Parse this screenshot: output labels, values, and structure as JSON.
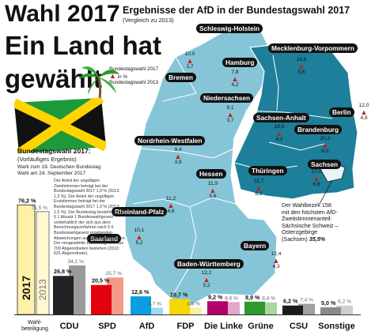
{
  "header": {
    "title_line1": "Wahl 2017",
    "title_line2": "Ein Land hat",
    "title_line3": "gewählt",
    "map_title": "Ergebnisse der AfD in der Bundestagswahl 2017",
    "map_subtitle": "(Vergleich zu 2013)"
  },
  "legend": {
    "label_2017": "Bundestagswahl 2017",
    "label_change": "in %",
    "label_2013": "Bundestagswahl 2013"
  },
  "states": [
    {
      "name": "Schleswig-Holstein",
      "v2017": "",
      "v2013": ""
    },
    {
      "name": "Mecklenburg-Vorpommern",
      "v2017": "18,6",
      "v2013": "5,6"
    },
    {
      "name": "Hamburg",
      "v2017": "7,8",
      "v2013": "4,2"
    },
    {
      "name": "Bremen",
      "v2017": "10,0",
      "v2013": "3,7"
    },
    {
      "name": "Niedersachsen",
      "v2017": "9,1",
      "v2013": "3,7"
    },
    {
      "name": "Berlin",
      "v2017": "12,0",
      "v2013": "4,9"
    },
    {
      "name": "Sachsen-Anhalt",
      "v2017": "19,6",
      "v2013": "4,2"
    },
    {
      "name": "Brandenburg",
      "v2017": "20,2",
      "v2013": "6,0"
    },
    {
      "name": "Nordrhein-Westfalen",
      "v2017": "9,4",
      "v2013": "3,9"
    },
    {
      "name": "Thüringen",
      "v2017": "22,7",
      "v2013": "6,2"
    },
    {
      "name": "Sachsen",
      "v2017": "27,0",
      "v2013": "6,8"
    },
    {
      "name": "Hessen",
      "v2017": "11,9",
      "v2013": "5,6"
    },
    {
      "name": "Rheinland-Pfalz",
      "v2017": "11,2",
      "v2013": "4,8"
    },
    {
      "name": "Saarland",
      "v2017": "10,1",
      "v2013": "5,2"
    },
    {
      "name": "Bayern",
      "v2017": "12,4",
      "v2013": "4,3"
    },
    {
      "name": "Baden-Württemberg",
      "v2017": "12,2",
      "v2013": "5,2"
    }
  ],
  "sachsen_note": {
    "line1": "Der Wahlbezirk 158",
    "line2": "mit den höchsten AfD-",
    "line3": "Zweitstimmenanteil:",
    "line4": "Sächsische Schweiz –",
    "line5": "Osterzgebirge",
    "line6_prefix": "(Sachsen) ",
    "line6_value": "35,5%"
  },
  "results_box": {
    "title": "Bundestagswahl 2017:",
    "subtitle": "(Vorläufiges Ergebnis)",
    "info1": "Wahl zum 19. Deutschen Bundestag",
    "info2": "Wahl am 24. September 2017",
    "footnote": "Der Anteil der ungültigen Zweitstimmen beträgt bei der Bundestagswahl 2017 1,0 % (2013: 1,3 %). Der Anteil der ungültigen Erststimmen beträgt bei der Bundestagswahl 2017 1,3 % (2013: 1,5 %). Der Bundestag besteht gemäß § 1 Absatz 1 Bundeswahlgesetz vorbehaltlich der sich aus dem Berechnungsverfahren nach § 6 Bundeswahlgesetz ergebenden Abweichungen aus 598 Abgeordneten. Der neugewählte Bundestag wird aus 709 Abgeordneten bestehen (2013: 631 Abgeordnete).",
    "turnout_label": "Wahl-\nbeteiligung",
    "turnout_2017_year": "2017",
    "turnout_2013_year": "2013"
  },
  "chart_data": {
    "type": "bar",
    "title": "Bundestagswahl 2017:",
    "categories": [
      "Wahlbeteiligung",
      "CDU",
      "SPD",
      "AfD",
      "FDP",
      "Die Linke",
      "Grüne",
      "CSU",
      "Sonstige"
    ],
    "series": [
      {
        "name": "2017",
        "values": [
          76.2,
          26.8,
          20.5,
          12.6,
          10.7,
          9.2,
          8.9,
          6.2,
          5.0
        ]
      },
      {
        "name": "2013",
        "values": [
          71.5,
          34.1,
          25.7,
          4.7,
          4.8,
          8.6,
          8.4,
          7.4,
          6.2
        ]
      }
    ],
    "value_labels_2017": [
      "76,2 %",
      "26,8 %",
      "20,5 %",
      "12,6 %",
      "10,7 %",
      "9,2 %",
      "8,9 %",
      "6,2 %",
      "5,0 %"
    ],
    "value_labels_2013": [
      "71,5 %",
      "34,1 %",
      "25,7 %",
      "4,7 %",
      "4,8 %",
      "8,6 %",
      "8,4 %",
      "7,4 %",
      "6,2 %"
    ],
    "colors_2017": [
      "#fff2a8",
      "#222222",
      "#e3000f",
      "#0a9ee0",
      "#f5d800",
      "#b3006b",
      "#2c9a2c",
      "#1a1a1a",
      "#8a8a8a"
    ],
    "colors_2013": [
      "#fff8d0",
      "#9a9a9a",
      "#f19a8a",
      "#9fd8f2",
      "#faefa0",
      "#e0a6cb",
      "#a9d6a0",
      "#a0a0a0",
      "#cfcfcf"
    ],
    "ylim": [
      0,
      80
    ]
  },
  "colors": {
    "map_light": "#86c5d8",
    "map_dark": "#1d7f99",
    "arrow_red": "#c81a1a",
    "jamaica_green": "#1d9a3a",
    "jamaica_yellow": "#ffd400"
  }
}
